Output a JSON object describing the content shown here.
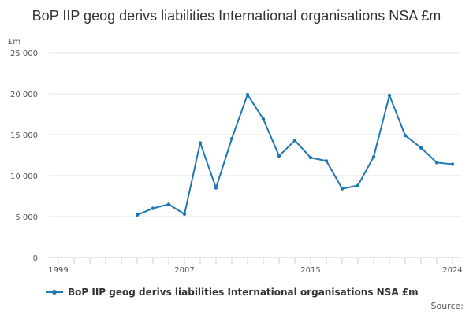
{
  "chart_data": {
    "type": "line",
    "title": "BoP IIP geog derivs liabilities International organisations NSA £m",
    "ylabel": "£m",
    "xlabel": "",
    "ylim": [
      0,
      25000
    ],
    "xlim": [
      1999,
      2024
    ],
    "x_ticks": [
      "1999",
      "2007",
      "2015",
      "2024"
    ],
    "y_ticks": [
      "0",
      "5 000",
      "10 000",
      "15 000",
      "20 000",
      "25 000"
    ],
    "y_tick_values": [
      0,
      5000,
      10000,
      15000,
      20000,
      25000
    ],
    "grid": true,
    "legend": "bottom",
    "series": [
      {
        "name": "BoP IIP geog derivs liabilities International organisations NSA £m",
        "color": "#1f77b4",
        "x": [
          2004,
          2005,
          2006,
          2007,
          2008,
          2009,
          2010,
          2011,
          2012,
          2013,
          2014,
          2015,
          2016,
          2017,
          2018,
          2019,
          2020,
          2021,
          2022,
          2023,
          2024
        ],
        "values": [
          5200,
          6000,
          6500,
          5300,
          14000,
          8500,
          14500,
          19900,
          16900,
          12400,
          14300,
          12200,
          11800,
          8400,
          8800,
          12300,
          19800,
          14900,
          13400,
          11600,
          11400
        ]
      }
    ]
  },
  "source_label": "Source:"
}
